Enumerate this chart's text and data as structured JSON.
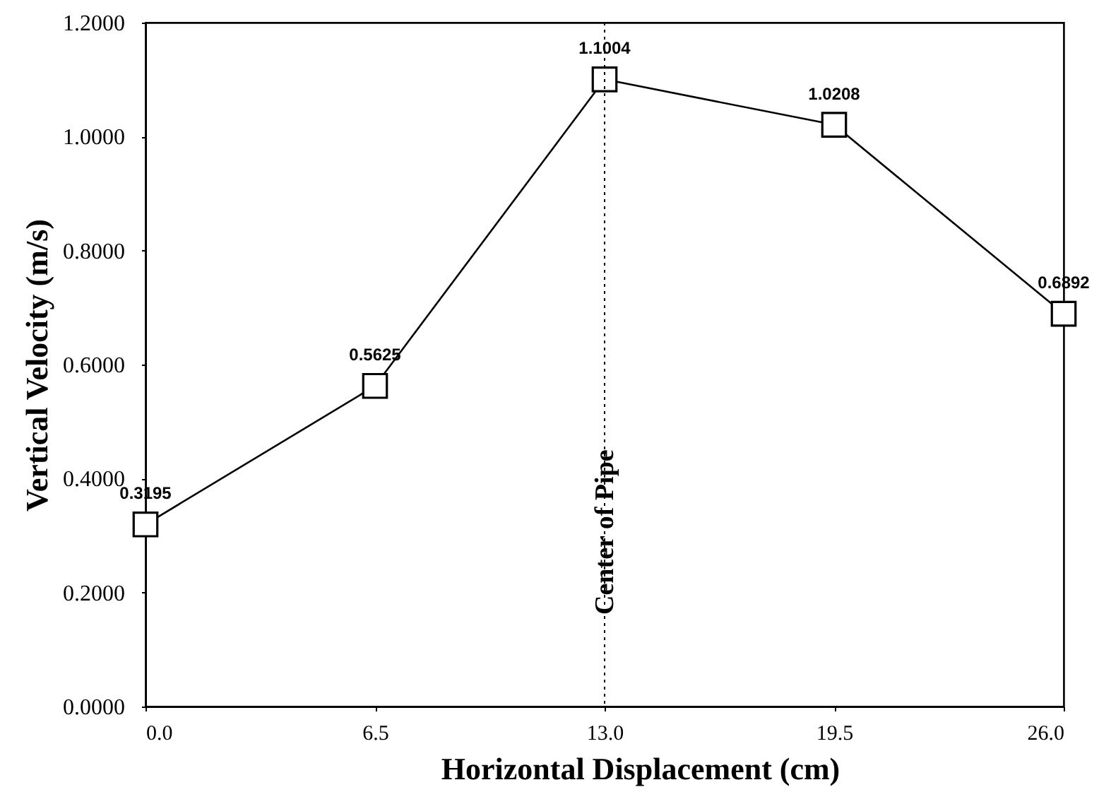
{
  "chart_data": {
    "type": "line",
    "xlabel": "Horizontal Displacement (cm)",
    "ylabel": "Vertical Velocity (m/s)",
    "x": [
      0,
      6.5,
      13,
      19.5,
      26
    ],
    "series": [
      {
        "color": "#000000",
        "values": [
          0.3195,
          0.5625,
          1.1004,
          1.0208,
          0.6892
        ]
      }
    ],
    "xlim": [
      0,
      26
    ],
    "ylim": [
      0,
      1.2
    ],
    "xticks": [
      {
        "value": 0,
        "label": "0.0"
      },
      6.5,
      {
        "value": 13,
        "label": "13.0"
      },
      19.5,
      {
        "value": 26,
        "label": "26.0"
      }
    ],
    "yticks": [
      {
        "value": 0,
        "label": "0.0000"
      },
      {
        "value": 0.2,
        "label": "0.2000"
      },
      {
        "value": 0.4,
        "label": "0.4000"
      },
      {
        "value": 0.6,
        "label": "0.6000"
      },
      {
        "value": 0.8,
        "label": "0.8000"
      },
      {
        "value": 1.0,
        "label": "1.0000"
      },
      {
        "value": 1.2,
        "label": "1.2000"
      }
    ],
    "grid": false,
    "marker": "square",
    "line_style": "solid",
    "data_labels": true,
    "ref_lines": [
      {
        "axis": "x",
        "value": 13,
        "label": "Center of Pipe",
        "line_style": "dotted",
        "color": "#000000"
      }
    ]
  }
}
